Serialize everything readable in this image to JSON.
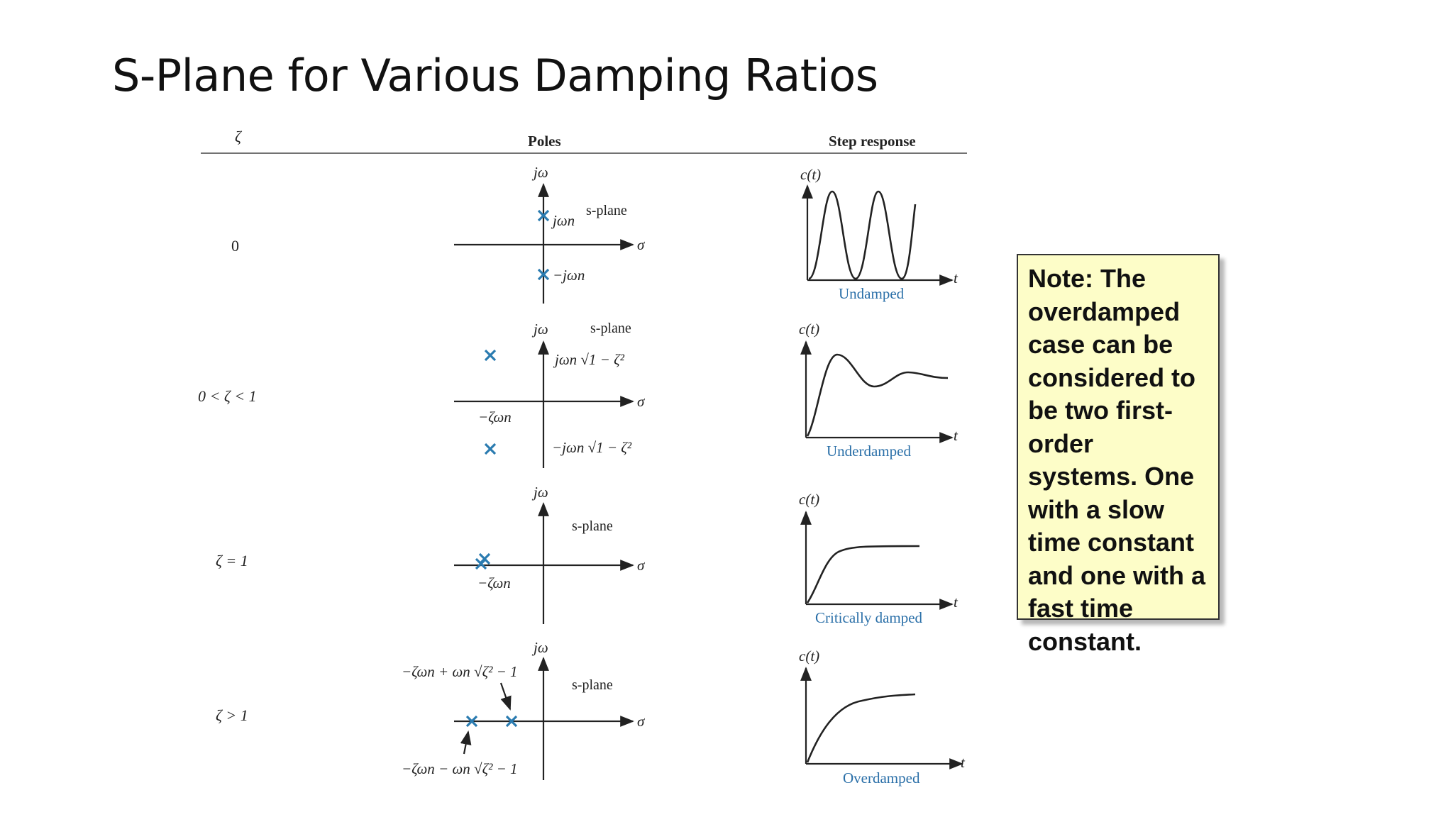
{
  "title": "S-Plane for Various Damping Ratios",
  "table": {
    "headers": {
      "zeta": "ζ",
      "poles": "Poles",
      "step": "Step response"
    },
    "rows": [
      {
        "zeta": "0",
        "jw": "jω",
        "splane": "s-plane",
        "sigma": "σ",
        "upper": "jωn",
        "lower": "−jωn",
        "ct": "c(t)",
        "t": "t",
        "caption": "Undamped"
      },
      {
        "zeta": "0 < ζ < 1",
        "jw": "jω",
        "splane": "s-plane",
        "sigma": "σ",
        "upper": "jωn √1 − ζ²",
        "lower": "−jωn √1 − ζ²",
        "real": "−ζωn",
        "ct": "c(t)",
        "t": "t",
        "caption": "Underdamped"
      },
      {
        "zeta": "ζ = 1",
        "jw": "jω",
        "splane": "s-plane",
        "sigma": "σ",
        "real": "−ζωn",
        "ct": "c(t)",
        "t": "t",
        "caption": "Critically damped"
      },
      {
        "zeta": "ζ > 1",
        "jw": "jω",
        "splane": "s-plane",
        "sigma": "σ",
        "upper": "−ζωn + ωn √ζ² − 1",
        "lower": "−ζωn − ωn √ζ² − 1",
        "ct": "c(t)",
        "t": "t",
        "caption": "Overdamped"
      }
    ]
  },
  "note": "Note: The overdamped case can be considered to be two first-order systems. One with a slow time constant and one with a fast time constant.",
  "colors": {
    "pole": "#2a7bb0",
    "note_bg": "#fdfdc8",
    "caption": "#2a6fa8"
  }
}
